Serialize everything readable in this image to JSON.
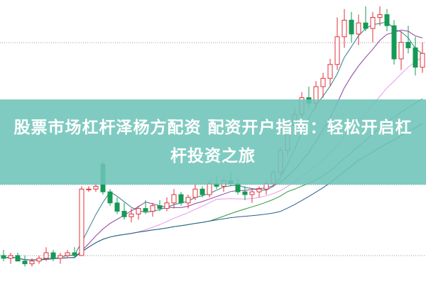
{
  "title": "股票市场杠杆泽杨方配资 配资开户指南：轻松开启杠杆投资之旅",
  "colors": {
    "up": "#e0323a",
    "down": "#159a55",
    "banner": "#6ec4b8",
    "ma": [
      "#2f7f86",
      "#8e3fa0",
      "#e79be6",
      "#2e9a3a",
      "#2a5f8c"
    ]
  },
  "chart_data": {
    "type": "candlestick",
    "fields": [
      "open",
      "high",
      "low",
      "close"
    ],
    "moving_averages": [
      5,
      10,
      20,
      30,
      40
    ],
    "grid": "dotted horizontal",
    "candles": [
      [
        9,
        11,
        7,
        8
      ],
      [
        8,
        10,
        6,
        9
      ],
      [
        9,
        10,
        7,
        7
      ],
      [
        7,
        9,
        5,
        6
      ],
      [
        6,
        8,
        5,
        7
      ],
      [
        7,
        9,
        6,
        8
      ],
      [
        8,
        12,
        7,
        10
      ],
      [
        10,
        11,
        7,
        8
      ],
      [
        8,
        10,
        6,
        9
      ],
      [
        9,
        11,
        8,
        10
      ],
      [
        10,
        12,
        8,
        9
      ],
      [
        9,
        34,
        9,
        33
      ],
      [
        33,
        34,
        32,
        33
      ],
      [
        33,
        35,
        32,
        34
      ],
      [
        42,
        43,
        31,
        32
      ],
      [
        32,
        33,
        27,
        28
      ],
      [
        28,
        30,
        24,
        25
      ],
      [
        25,
        28,
        22,
        23
      ],
      [
        23,
        26,
        21,
        24
      ],
      [
        24,
        27,
        22,
        26
      ],
      [
        26,
        29,
        24,
        25
      ],
      [
        25,
        28,
        23,
        27
      ],
      [
        27,
        29,
        25,
        26
      ],
      [
        26,
        30,
        25,
        28
      ],
      [
        28,
        33,
        26,
        31
      ],
      [
        31,
        32,
        27,
        28
      ],
      [
        28,
        31,
        26,
        30
      ],
      [
        30,
        35,
        29,
        33
      ],
      [
        33,
        34,
        30,
        31
      ],
      [
        31,
        36,
        30,
        35
      ],
      [
        35,
        38,
        33,
        34
      ],
      [
        34,
        37,
        32,
        36
      ],
      [
        36,
        39,
        34,
        35
      ],
      [
        35,
        37,
        31,
        32
      ],
      [
        32,
        34,
        29,
        31
      ],
      [
        31,
        33,
        28,
        32
      ],
      [
        32,
        34,
        30,
        33
      ],
      [
        33,
        36,
        31,
        35
      ],
      [
        35,
        40,
        34,
        39
      ],
      [
        39,
        48,
        38,
        47
      ],
      [
        47,
        58,
        45,
        56
      ],
      [
        56,
        62,
        52,
        60
      ],
      [
        60,
        68,
        58,
        66
      ],
      [
        66,
        70,
        62,
        64
      ],
      [
        64,
        72,
        62,
        70
      ],
      [
        70,
        75,
        66,
        73
      ],
      [
        73,
        80,
        70,
        78
      ],
      [
        78,
        95,
        76,
        88
      ],
      [
        88,
        98,
        84,
        94
      ],
      [
        94,
        97,
        86,
        89
      ],
      [
        89,
        96,
        85,
        93
      ],
      [
        93,
        99,
        90,
        91
      ],
      [
        91,
        97,
        86,
        95
      ],
      [
        95,
        99,
        92,
        96
      ],
      [
        96,
        98,
        90,
        92
      ],
      [
        92,
        94,
        78,
        80
      ],
      [
        80,
        90,
        76,
        86
      ],
      [
        86,
        92,
        82,
        84
      ],
      [
        84,
        88,
        74,
        77
      ],
      [
        77,
        86,
        75,
        82
      ]
    ]
  }
}
